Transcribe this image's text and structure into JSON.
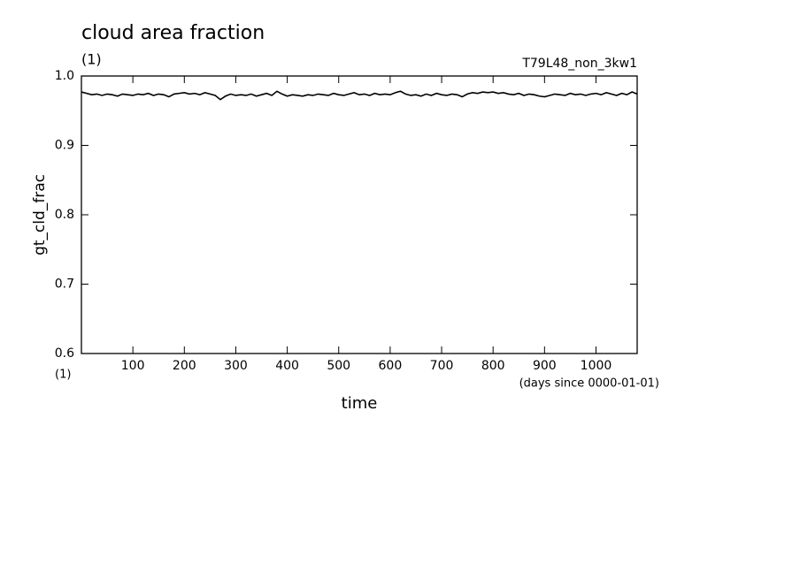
{
  "chart_data": {
    "type": "line",
    "title": "cloud area fraction",
    "subtitle": "(1)",
    "annotation": "T79L48_non_3kw1",
    "y_label": "gt_cld_frac",
    "x_label": "time",
    "y_units": "(1)",
    "x_units": "(days since 0000-01-01)",
    "x": [
      0,
      10,
      20,
      30,
      40,
      50,
      60,
      70,
      80,
      90,
      100,
      110,
      120,
      130,
      140,
      150,
      160,
      170,
      180,
      190,
      200,
      210,
      220,
      230,
      240,
      250,
      260,
      270,
      280,
      290,
      300,
      310,
      320,
      330,
      340,
      350,
      360,
      370,
      380,
      390,
      400,
      410,
      420,
      430,
      440,
      450,
      460,
      470,
      480,
      490,
      500,
      510,
      520,
      530,
      540,
      550,
      560,
      570,
      580,
      590,
      600,
      610,
      620,
      630,
      640,
      650,
      660,
      670,
      680,
      690,
      700,
      710,
      720,
      730,
      740,
      750,
      760,
      770,
      780,
      790,
      800,
      810,
      820,
      830,
      840,
      850,
      860,
      870,
      880,
      890,
      900,
      910,
      920,
      930,
      940,
      950,
      960,
      970,
      980,
      990,
      1000,
      1010,
      1020,
      1030,
      1040,
      1050,
      1060,
      1070,
      1080
    ],
    "series": [
      {
        "name": "gt_cld_frac",
        "color": "#000000",
        "values": [
          0.977,
          0.975,
          0.973,
          0.974,
          0.972,
          0.974,
          0.973,
          0.971,
          0.974,
          0.973,
          0.972,
          0.974,
          0.973,
          0.975,
          0.972,
          0.974,
          0.973,
          0.97,
          0.974,
          0.975,
          0.976,
          0.974,
          0.975,
          0.973,
          0.976,
          0.974,
          0.972,
          0.966,
          0.971,
          0.974,
          0.972,
          0.973,
          0.972,
          0.974,
          0.971,
          0.973,
          0.975,
          0.972,
          0.978,
          0.974,
          0.971,
          0.973,
          0.972,
          0.971,
          0.973,
          0.972,
          0.974,
          0.973,
          0.972,
          0.975,
          0.973,
          0.972,
          0.974,
          0.976,
          0.973,
          0.974,
          0.972,
          0.975,
          0.973,
          0.974,
          0.973,
          0.976,
          0.978,
          0.974,
          0.972,
          0.973,
          0.971,
          0.974,
          0.972,
          0.975,
          0.973,
          0.972,
          0.974,
          0.973,
          0.97,
          0.974,
          0.976,
          0.975,
          0.977,
          0.976,
          0.977,
          0.975,
          0.976,
          0.974,
          0.973,
          0.975,
          0.972,
          0.974,
          0.973,
          0.971,
          0.97,
          0.972,
          0.974,
          0.973,
          0.972,
          0.975,
          0.973,
          0.974,
          0.972,
          0.974,
          0.975,
          0.973,
          0.976,
          0.974,
          0.972,
          0.975,
          0.973,
          0.977,
          0.974
        ]
      }
    ],
    "xlim": [
      0,
      1080
    ],
    "ylim": [
      0.6,
      1
    ],
    "xticks": [
      100,
      200,
      300,
      400,
      500,
      600,
      700,
      800,
      900,
      1000
    ],
    "yticks": [
      0.6,
      0.7,
      0.8,
      0.9,
      {
        "value": 1,
        "label": "1.0"
      }
    ],
    "grid": false
  }
}
